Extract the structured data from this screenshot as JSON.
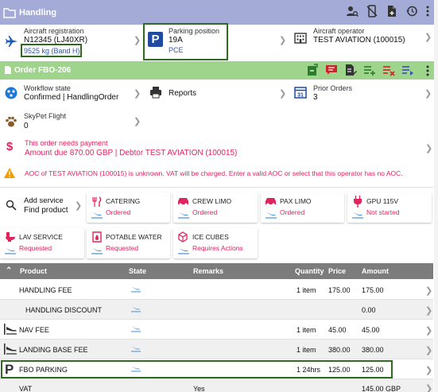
{
  "header": {
    "title": "Handling"
  },
  "aircraft": {
    "registration_label": "Aircraft registration",
    "registration_value": "N12345 (LJ40XR)",
    "weight": "9525 kg (Band H)"
  },
  "parking": {
    "label": "Parking position",
    "value": "19A",
    "sub": "PCE"
  },
  "operator": {
    "label": "Aircraft operator",
    "value": "TEST AVIATION (100015)"
  },
  "order": {
    "title": "Order FBO-206"
  },
  "workflow": {
    "label": "Workflow state",
    "value": "Confirmed | HandlingOrder"
  },
  "reports": {
    "label": "Reports"
  },
  "prior_orders": {
    "label": "Prior Orders",
    "value": "3"
  },
  "skypet": {
    "label": "SkyPet Flight",
    "value": "0"
  },
  "payment": {
    "title": "This order needs payment",
    "detail": "Amount due 870.00 GBP | Debtor TEST AVIATION (100015)"
  },
  "aoc_warning": "AOC of TEST AVIATION (100015) is unknown. VAT will be charged. Enter a valid AOC or select that this operator has no AOC.",
  "add_service": {
    "line1": "Add service",
    "line2": "Find product"
  },
  "services": [
    {
      "name": "CATERING",
      "state": "Ordered"
    },
    {
      "name": "CREW LIMO",
      "state": "Ordered"
    },
    {
      "name": "PAX LIMO",
      "state": "Ordered"
    },
    {
      "name": "GPU 115V",
      "state": "Not started"
    },
    {
      "name": "LAV SERVICE",
      "state": "Requested"
    },
    {
      "name": "POTABLE WATER",
      "state": "Requested"
    },
    {
      "name": "ICE CUBES",
      "state": "Requires Actions"
    }
  ],
  "table": {
    "headers": {
      "product": "Product",
      "state": "State",
      "remarks": "Remarks",
      "quantity": "Quantity",
      "price": "Price",
      "amount": "Amount"
    },
    "rows": [
      {
        "product": "HANDLING FEE",
        "remarks": "",
        "quantity": "1 item",
        "price": "175.00",
        "amount": "175.00"
      },
      {
        "product": "HANDLING DISCOUNT",
        "remarks": "",
        "quantity": "",
        "price": "",
        "amount": "0.00"
      },
      {
        "product": "NAV FEE",
        "remarks": "",
        "quantity": "1 item",
        "price": "45.00",
        "amount": "45.00"
      },
      {
        "product": "LANDING BASE FEE",
        "remarks": "",
        "quantity": "1 item",
        "price": "380.00",
        "amount": "380.00"
      },
      {
        "product": "FBO PARKING",
        "remarks": "",
        "quantity": "1 24hrs",
        "price": "125.00",
        "amount": "125.00"
      },
      {
        "product": "VAT",
        "remarks": "Yes",
        "quantity": "",
        "price": "",
        "amount": "145.00 GBP"
      }
    ]
  },
  "colors": {
    "header": "#a4abd6",
    "order_header": "#9fd48c",
    "accent_red": "#e0245e",
    "link_blue": "#3355aa",
    "highlight_green": "#2e6b1e"
  }
}
